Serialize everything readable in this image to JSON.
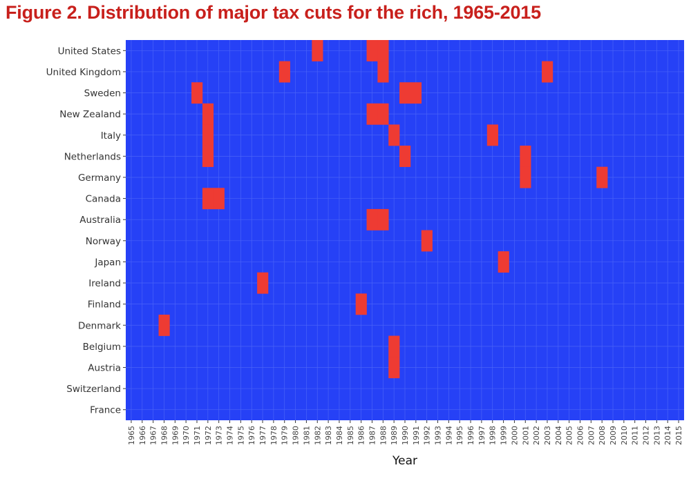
{
  "title": "Figure 2. Distribution of major tax cuts for the rich, 1965-2015",
  "colors": {
    "title": "#c8201c",
    "background": "#2641f6",
    "cut": "#ee3b33",
    "grid": "#4a63f8",
    "tick": "#333333"
  },
  "chart_data": {
    "type": "heatmap",
    "title": "Figure 2. Distribution of major tax cuts for the rich, 1965-2015",
    "xlabel": "Year",
    "ylabel": "",
    "x": [
      1965,
      1966,
      1967,
      1968,
      1969,
      1970,
      1971,
      1972,
      1973,
      1974,
      1975,
      1976,
      1977,
      1978,
      1979,
      1980,
      1981,
      1982,
      1983,
      1984,
      1985,
      1986,
      1987,
      1988,
      1989,
      1990,
      1991,
      1992,
      1993,
      1994,
      1995,
      1996,
      1997,
      1998,
      1999,
      2000,
      2001,
      2002,
      2003,
      2004,
      2005,
      2006,
      2007,
      2008,
      2009,
      2010,
      2011,
      2012,
      2013,
      2014,
      2015
    ],
    "xticks": [
      1965,
      1966,
      1967,
      1968,
      1969,
      1970,
      1971,
      1972,
      1973,
      1974,
      1975,
      1976,
      1977,
      1978,
      1979,
      1980,
      1981,
      1982,
      1983,
      1984,
      1985,
      1986,
      1987,
      1988,
      1989,
      1990,
      1991,
      1992,
      1993,
      1994,
      1995,
      1996,
      1997,
      1998,
      1999,
      2000,
      2001,
      2002,
      2003,
      2004,
      2005,
      2006,
      2007,
      2008,
      2009,
      2010,
      2011,
      2012,
      2013,
      2014,
      2015
    ],
    "countries": [
      "United States",
      "United Kingdom",
      "Sweden",
      "New Zealand",
      "Italy",
      "Netherlands",
      "Germany",
      "Canada",
      "Australia",
      "Norway",
      "Japan",
      "Ireland",
      "Finland",
      "Denmark",
      "Belgium",
      "Austria",
      "Switzerland",
      "France"
    ],
    "cuts": [
      {
        "country": "United States",
        "years": [
          1982,
          1987,
          1988
        ]
      },
      {
        "country": "United Kingdom",
        "years": [
          1979,
          1988,
          2003
        ]
      },
      {
        "country": "Sweden",
        "years": [
          1971,
          1990,
          1991
        ]
      },
      {
        "country": "New Zealand",
        "years": [
          1972,
          1987,
          1988
        ]
      },
      {
        "country": "Italy",
        "years": [
          1972,
          1989,
          1998
        ]
      },
      {
        "country": "Netherlands",
        "years": [
          1972,
          1990,
          2001
        ]
      },
      {
        "country": "Germany",
        "years": [
          2001,
          2008
        ]
      },
      {
        "country": "Canada",
        "years": [
          1972,
          1973
        ]
      },
      {
        "country": "Australia",
        "years": [
          1987,
          1988
        ]
      },
      {
        "country": "Norway",
        "years": [
          1992
        ]
      },
      {
        "country": "Japan",
        "years": [
          1999
        ]
      },
      {
        "country": "Ireland",
        "years": [
          1977
        ]
      },
      {
        "country": "Finland",
        "years": [
          1986
        ]
      },
      {
        "country": "Denmark",
        "years": [
          1968
        ]
      },
      {
        "country": "Belgium",
        "years": [
          1989
        ]
      },
      {
        "country": "Austria",
        "years": [
          1989
        ]
      },
      {
        "country": "Switzerland",
        "years": []
      },
      {
        "country": "France",
        "years": []
      }
    ]
  }
}
